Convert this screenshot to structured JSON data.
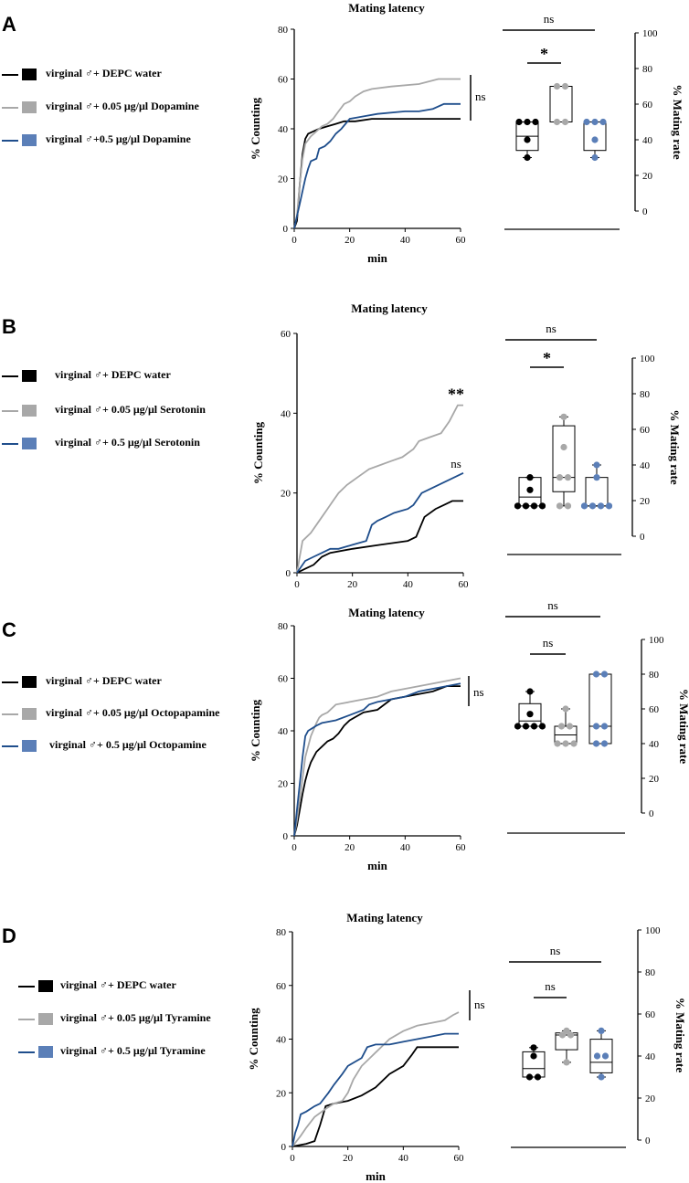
{
  "colors": {
    "black": "#000000",
    "gray": "#a8a8a8",
    "blue": "#1f4e8c",
    "blue_fill": "#5b7fb8"
  },
  "chart_data": [
    {
      "panel_label": "A",
      "type": "line",
      "title": "Mating latency",
      "xlabel": "min",
      "ylabel": "% Counting",
      "xlim": [
        0,
        60
      ],
      "ylim": [
        0,
        80
      ],
      "xticks": [
        0,
        20,
        40,
        60
      ],
      "yticks": [
        0,
        20,
        40,
        60,
        80
      ],
      "legend": [
        "virginal ♂+ DEPC water",
        "virginal ♂+ 0.05 μg/μl Dopamine",
        "virginal ♂+0.5 μg/μl Dopamine"
      ],
      "series": [
        {
          "name": "virginal ♂+ DEPC water",
          "color": "black",
          "x": [
            0,
            1,
            2,
            3,
            4,
            5,
            7,
            9,
            12,
            15,
            18,
            22,
            28,
            35,
            45,
            60
          ],
          "y": [
            0,
            3,
            18,
            30,
            36,
            38,
            39,
            40,
            41,
            42,
            43,
            43,
            44,
            44,
            44,
            44
          ]
        },
        {
          "name": "virginal ♂+ 0.05 μg/μl Dopamine",
          "color": "gray",
          "x": [
            0,
            1,
            2,
            3,
            4,
            6,
            8,
            10,
            12,
            14,
            16,
            18,
            20,
            22,
            25,
            28,
            35,
            45,
            52,
            60
          ],
          "y": [
            0,
            5,
            18,
            28,
            34,
            37,
            39,
            41,
            42,
            44,
            47,
            50,
            51,
            53,
            55,
            56,
            57,
            58,
            60,
            60
          ]
        },
        {
          "name": "virginal ♂+0.5 μg/μl Dopamine",
          "color": "blue",
          "x": [
            0,
            1,
            2,
            3,
            4,
            5,
            6,
            8,
            9,
            11,
            13,
            15,
            17,
            20,
            25,
            30,
            40,
            45,
            50,
            54,
            60
          ],
          "y": [
            0,
            5,
            10,
            15,
            20,
            24,
            27,
            28,
            32,
            33,
            35,
            38,
            40,
            44,
            45,
            46,
            47,
            47,
            48,
            50,
            50
          ]
        }
      ],
      "right_annotation": "ns",
      "box": {
        "ylabel": "% Mating rate",
        "ylim": [
          0,
          100
        ],
        "yticks": [
          0,
          20,
          40,
          60,
          80,
          100
        ],
        "groups": [
          {
            "color": "black",
            "points": [
              50,
              50,
              50,
              40,
              30
            ],
            "q1": 34,
            "median": 42,
            "q3": 50,
            "min": 30,
            "max": 50
          },
          {
            "color": "gray",
            "points": [
              70,
              70,
              50,
              50
            ],
            "q1": 50,
            "median": 50,
            "q3": 70,
            "min": 50,
            "max": 70
          },
          {
            "color": "blue",
            "points": [
              50,
              50,
              50,
              40,
              30
            ],
            "q1": 34,
            "median": 50,
            "q3": 50,
            "min": 30,
            "max": 50
          }
        ],
        "brackets": [
          {
            "from": 0,
            "to": 2,
            "label": "ns"
          },
          {
            "from": 0,
            "to": 1,
            "label": "*"
          }
        ]
      }
    },
    {
      "panel_label": "B",
      "type": "line",
      "title": "Mating latency",
      "xlabel": "min",
      "ylabel": "% Counting",
      "xlim": [
        0,
        60
      ],
      "ylim": [
        0,
        60
      ],
      "xticks": [
        0,
        20,
        40,
        60
      ],
      "yticks": [
        0,
        20,
        40,
        60
      ],
      "legend": [
        "virginal ♂+ DEPC water",
        "virginal ♂+  0.05 μg/μl Serotonin",
        "virginal ♂+  0.5 μg/μl Serotonin"
      ],
      "series": [
        {
          "name": "virginal ♂+ DEPC water",
          "color": "black",
          "x": [
            0,
            3,
            6,
            9,
            12,
            20,
            30,
            40,
            43,
            46,
            50,
            53,
            56,
            60
          ],
          "y": [
            0,
            1,
            2,
            4,
            5,
            6,
            7,
            8,
            9,
            14,
            16,
            17,
            18,
            18
          ]
        },
        {
          "name": "virginal ♂+  0.05 μg/μl Serotonin",
          "color": "gray",
          "x": [
            0,
            1,
            2,
            5,
            8,
            11,
            13,
            15,
            18,
            22,
            26,
            30,
            34,
            38,
            42,
            44,
            48,
            52,
            55,
            58,
            60
          ],
          "y": [
            0,
            4,
            8,
            10,
            13,
            16,
            18,
            20,
            22,
            24,
            26,
            27,
            28,
            29,
            31,
            33,
            34,
            35,
            38,
            42,
            42
          ]
        },
        {
          "name": "virginal ♂+  0.5 μg/μl Serotonin",
          "color": "blue",
          "x": [
            0,
            3,
            6,
            9,
            12,
            15,
            20,
            25,
            27,
            29,
            32,
            35,
            40,
            42,
            45,
            48,
            51,
            54,
            57,
            60
          ],
          "y": [
            0,
            3,
            4,
            5,
            6,
            6,
            7,
            8,
            12,
            13,
            14,
            15,
            16,
            17,
            20,
            21,
            22,
            23,
            24,
            25
          ]
        }
      ],
      "annotations": [
        {
          "label": "**",
          "series": 1
        },
        {
          "label": "ns",
          "series": 2
        }
      ],
      "box": {
        "ylabel": "% Mating rate",
        "ylim": [
          0,
          100
        ],
        "yticks": [
          0,
          20,
          40,
          60,
          80,
          100
        ],
        "groups": [
          {
            "color": "black",
            "points": [
              33,
              26,
              17,
              17,
              17,
              17
            ],
            "q1": 17,
            "median": 22,
            "q3": 33,
            "min": 17,
            "max": 33
          },
          {
            "color": "gray",
            "points": [
              67,
              50,
              33,
              33,
              17,
              17
            ],
            "q1": 25,
            "median": 33,
            "q3": 62,
            "min": 17,
            "max": 67
          },
          {
            "color": "blue",
            "points": [
              40,
              33,
              17,
              17,
              17,
              17
            ],
            "q1": 17,
            "median": 17,
            "q3": 33,
            "min": 17,
            "max": 40
          }
        ],
        "brackets": [
          {
            "from": 0,
            "to": 2,
            "label": "ns"
          },
          {
            "from": 0,
            "to": 1,
            "label": "*"
          }
        ]
      }
    },
    {
      "panel_label": "C",
      "type": "line",
      "title": "Mating latency",
      "xlabel": "min",
      "ylabel": "% Counting",
      "xlim": [
        0,
        60
      ],
      "ylim": [
        0,
        80
      ],
      "xticks": [
        0,
        20,
        40,
        60
      ],
      "yticks": [
        0,
        20,
        40,
        60,
        80
      ],
      "legend": [
        "virginal ♂+ DEPC water",
        "virginal ♂+ 0.05 μg/μl Octopapamine",
        "virginal ♂+ 0.5 μg/μl Octopamine"
      ],
      "series": [
        {
          "name": "virginal ♂+ DEPC water",
          "color": "black",
          "x": [
            0,
            1,
            2,
            3,
            4,
            5,
            6,
            7,
            8,
            9,
            10,
            12,
            14,
            16,
            18,
            20,
            25,
            30,
            35,
            40,
            45,
            50,
            55,
            60
          ],
          "y": [
            0,
            4,
            10,
            16,
            21,
            25,
            28,
            30,
            32,
            33,
            34,
            36,
            37,
            39,
            42,
            44,
            47,
            48,
            52,
            53,
            54,
            55,
            57,
            57
          ]
        },
        {
          "name": "virginal ♂+ 0.05 μg/μl Octopapamine",
          "color": "gray",
          "x": [
            0,
            1,
            2,
            3,
            4,
            6,
            8,
            9,
            10,
            12,
            15,
            20,
            25,
            30,
            35,
            40,
            45,
            50,
            55,
            60
          ],
          "y": [
            0,
            6,
            14,
            22,
            30,
            38,
            43,
            45,
            46,
            47,
            50,
            51,
            52,
            53,
            55,
            56,
            57,
            58,
            59,
            60
          ]
        },
        {
          "name": "virginal ♂+ 0.5 μg/μl Octopamine",
          "color": "blue",
          "x": [
            0,
            1,
            2,
            3,
            4,
            5,
            8,
            10,
            15,
            20,
            25,
            27,
            30,
            35,
            40,
            45,
            50,
            55,
            60
          ],
          "y": [
            0,
            10,
            20,
            30,
            38,
            40,
            42,
            43,
            44,
            46,
            48,
            50,
            51,
            52,
            53,
            55,
            56,
            57,
            58
          ]
        }
      ],
      "right_annotation": "ns",
      "box": {
        "ylabel": "% Mating rate",
        "ylim": [
          0,
          100
        ],
        "yticks": [
          0,
          20,
          40,
          60,
          80,
          100
        ],
        "groups": [
          {
            "color": "black",
            "points": [
              70,
              57,
              50,
              50,
              50,
              50
            ],
            "q1": 50,
            "median": 53,
            "q3": 63,
            "min": 50,
            "max": 70
          },
          {
            "color": "gray",
            "points": [
              60,
              50,
              50,
              40,
              40,
              40
            ],
            "q1": 40,
            "median": 45,
            "q3": 50,
            "min": 40,
            "max": 60
          },
          {
            "color": "blue",
            "points": [
              80,
              80,
              50,
              50,
              40,
              40
            ],
            "q1": 40,
            "median": 50,
            "q3": 80,
            "min": 40,
            "max": 80
          }
        ],
        "brackets": [
          {
            "from": 0,
            "to": 2,
            "label": "ns"
          },
          {
            "from": 0,
            "to": 1,
            "label": "ns"
          }
        ]
      }
    },
    {
      "panel_label": "D",
      "type": "line",
      "title": "Mating latency",
      "xlabel": "min",
      "ylabel": "% Counting",
      "xlim": [
        0,
        60
      ],
      "ylim": [
        0,
        80
      ],
      "xticks": [
        0,
        20,
        40,
        60
      ],
      "yticks": [
        0,
        20,
        40,
        60,
        80
      ],
      "legend": [
        "virginal ♂+ DEPC water",
        "virginal ♂+ 0.05 μg/μl Tyramine",
        "virginal ♂+ 0.5 μg/μl Tyramine"
      ],
      "series": [
        {
          "name": "virginal ♂+ DEPC water",
          "color": "black",
          "x": [
            0,
            5,
            8,
            10,
            12,
            15,
            20,
            25,
            30,
            35,
            40,
            43,
            45,
            50,
            55,
            60
          ],
          "y": [
            0,
            1,
            2,
            8,
            15,
            16,
            17,
            19,
            22,
            27,
            30,
            34,
            37,
            37,
            37,
            37
          ]
        },
        {
          "name": "virginal ♂+ 0.05 μg/μl Tyramine",
          "color": "gray",
          "x": [
            0,
            3,
            5,
            8,
            12,
            15,
            18,
            20,
            22,
            25,
            28,
            30,
            35,
            40,
            45,
            50,
            55,
            58,
            60
          ],
          "y": [
            0,
            4,
            7,
            11,
            14,
            16,
            17,
            20,
            25,
            30,
            33,
            35,
            40,
            43,
            45,
            46,
            47,
            49,
            50
          ]
        },
        {
          "name": "virginal ♂+ 0.5 μg/μl Tyramine",
          "color": "blue",
          "x": [
            0,
            1,
            2,
            3,
            5,
            8,
            10,
            13,
            15,
            18,
            20,
            25,
            27,
            30,
            35,
            40,
            45,
            50,
            55,
            60
          ],
          "y": [
            0,
            5,
            8,
            12,
            13,
            15,
            16,
            20,
            23,
            27,
            30,
            33,
            37,
            38,
            38,
            39,
            40,
            41,
            42,
            42
          ]
        }
      ],
      "right_annotation": "ns",
      "box": {
        "ylabel": "% Mating rate",
        "ylim": [
          0,
          100
        ],
        "yticks": [
          0,
          20,
          40,
          60,
          80,
          100
        ],
        "groups": [
          {
            "color": "black",
            "points": [
              44,
              40,
              30,
              30
            ],
            "q1": 30,
            "median": 34,
            "q3": 42,
            "min": 30,
            "max": 44
          },
          {
            "color": "gray",
            "points": [
              52,
              50,
              50,
              37
            ],
            "q1": 43,
            "median": 50,
            "q3": 51,
            "min": 37,
            "max": 52
          },
          {
            "color": "blue",
            "points": [
              52,
              40,
              40,
              30
            ],
            "q1": 32,
            "median": 37,
            "q3": 48,
            "min": 30,
            "max": 52
          }
        ],
        "brackets": [
          {
            "from": 0,
            "to": 2,
            "label": "ns"
          },
          {
            "from": 0,
            "to": 1,
            "label": "ns"
          }
        ]
      }
    }
  ]
}
